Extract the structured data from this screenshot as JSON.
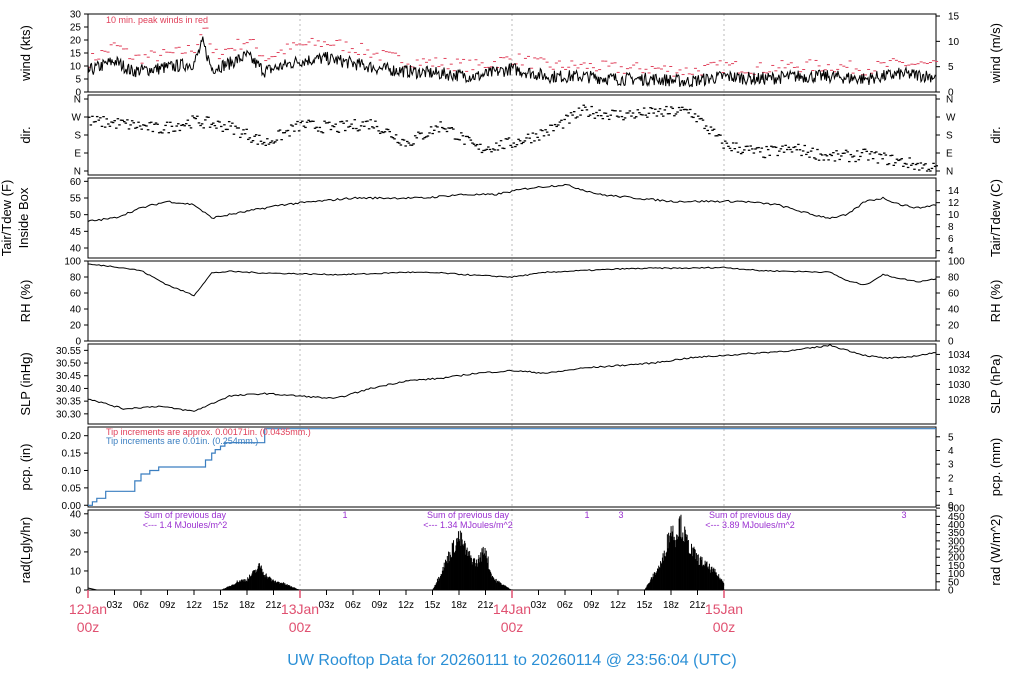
{
  "title": "UW Rooftop Data for 20260111  to  20260114 @ 23:56:04  (UTC)",
  "colors": {
    "data": "#000000",
    "peak": "#e0405a",
    "tip_red": "#e0405a",
    "tip_blue": "#3a7ec0",
    "sum_purple": "#9a2fd0",
    "day_label": "#e05070",
    "title": "#2a8fd6"
  },
  "time_axis": {
    "hour_labels": [
      "03z",
      "06z",
      "09z",
      "12z",
      "15z",
      "18z",
      "21z"
    ],
    "days": [
      {
        "date": "12Jan",
        "hour": "00z"
      },
      {
        "date": "13Jan",
        "hour": "00z"
      },
      {
        "date": "14Jan",
        "hour": "00z"
      },
      {
        "date": "15Jan",
        "hour": "00z"
      }
    ]
  },
  "chart_data": [
    {
      "type": "line",
      "id": "wind",
      "ylabel_left": "wind (kts)",
      "ylabel_right": "wind (m/s)",
      "yticks_left": [
        "0",
        "5",
        "10",
        "15",
        "20",
        "25",
        "30"
      ],
      "yticks_right": [
        "0",
        "5",
        "10",
        "15"
      ],
      "ylim_left": [
        0,
        30
      ],
      "ylim_right": [
        0,
        15.4
      ],
      "annotation": "10 min. peak winds in red",
      "series": [
        {
          "name": "wind",
          "x_hours": [
            0,
            3,
            5,
            8,
            10,
            12,
            13,
            14,
            16,
            18,
            20,
            22,
            24,
            27,
            30,
            33,
            36,
            40,
            44,
            48,
            52,
            56,
            60,
            64,
            68,
            72,
            76,
            80,
            84,
            88,
            92,
            96
          ],
          "values": [
            8,
            12,
            8,
            9,
            10,
            11,
            19,
            9,
            11,
            14,
            8,
            10,
            12,
            13,
            11,
            9,
            8,
            7,
            6,
            9,
            6,
            6,
            5,
            5,
            4,
            6,
            5,
            6,
            6,
            5,
            7,
            6
          ]
        },
        {
          "name": "10 min. peak winds",
          "x_hours": [
            0,
            3,
            5,
            8,
            10,
            12,
            13,
            14,
            16,
            18,
            20,
            22,
            24,
            27,
            30,
            33,
            36,
            40,
            44,
            48,
            52,
            56,
            60,
            64,
            68,
            72,
            76,
            80,
            84,
            88,
            92,
            96
          ],
          "values": [
            12,
            18,
            13,
            14,
            15,
            17,
            26,
            14,
            17,
            20,
            13,
            16,
            18,
            19,
            17,
            14,
            12,
            11,
            10,
            13,
            10,
            10,
            9,
            9,
            8,
            10,
            9,
            10,
            10,
            9,
            11,
            10
          ]
        }
      ]
    },
    {
      "type": "scatter",
      "id": "dir",
      "ylabel_left": "dir.",
      "ylabel_right": "dir.",
      "yticks": [
        "N",
        "E",
        "S",
        "W",
        "N"
      ],
      "x_hours": [
        0,
        4,
        8,
        12,
        16,
        20,
        24,
        28,
        32,
        36,
        40,
        44,
        48,
        52,
        56,
        60,
        64,
        68,
        72,
        76,
        80,
        84,
        88,
        92,
        96
      ],
      "values_deg": [
        250,
        235,
        210,
        250,
        220,
        140,
        230,
        215,
        240,
        140,
        230,
        110,
        140,
        200,
        300,
        280,
        290,
        300,
        130,
        90,
        110,
        70,
        80,
        45,
        10
      ]
    },
    {
      "type": "line",
      "id": "temp",
      "ylabel_left": "Inside Box",
      "ylabel_left2": "Tair/Tdew (F)",
      "ylabel_right": "Tair/Tdew (C)",
      "yticks_left": [
        "40",
        "45",
        "50",
        "55",
        "60"
      ],
      "yticks_right": [
        "4",
        "6",
        "8",
        "10",
        "12",
        "14"
      ],
      "ylim_left": [
        37,
        61
      ],
      "x_hours": [
        0,
        3,
        6,
        9,
        12,
        14,
        18,
        22,
        26,
        30,
        34,
        38,
        42,
        46,
        50,
        54,
        58,
        62,
        66,
        70,
        74,
        78,
        82,
        84,
        86,
        88,
        90,
        92,
        94,
        96
      ],
      "values": [
        48,
        49,
        52,
        54,
        53,
        49,
        51,
        53,
        54,
        55,
        55,
        55,
        56,
        56,
        58,
        59,
        56,
        55,
        54,
        54,
        54,
        53,
        50,
        49,
        50,
        54,
        55,
        53,
        52,
        53
      ]
    },
    {
      "type": "line",
      "id": "rh",
      "ylabel_left": "RH (%)",
      "ylabel_right": "RH (%)",
      "yticks": [
        "0",
        "20",
        "40",
        "60",
        "80",
        "100"
      ],
      "ylim": [
        0,
        100
      ],
      "x_hours": [
        0,
        3,
        6,
        9,
        12,
        14,
        16,
        20,
        24,
        28,
        32,
        36,
        40,
        44,
        48,
        52,
        56,
        60,
        64,
        68,
        72,
        76,
        80,
        84,
        86,
        88,
        90,
        92,
        94,
        96
      ],
      "values": [
        96,
        93,
        88,
        70,
        57,
        85,
        87,
        85,
        84,
        83,
        84,
        86,
        85,
        82,
        80,
        86,
        88,
        90,
        91,
        91,
        92,
        88,
        87,
        86,
        75,
        70,
        83,
        78,
        74,
        78
      ]
    },
    {
      "type": "line",
      "id": "slp",
      "ylabel_left": "SLP (inHg)",
      "ylabel_right": "SLP (hPa)",
      "yticks_left": [
        "30.30",
        "30.35",
        "30.40",
        "30.45",
        "30.50",
        "30.55"
      ],
      "yticks_right": [
        "1028",
        "1030",
        "1032",
        "1034"
      ],
      "ylim_left": [
        30.26,
        30.575
      ],
      "x_hours": [
        0,
        4,
        8,
        12,
        16,
        20,
        24,
        28,
        32,
        36,
        40,
        44,
        48,
        52,
        56,
        60,
        64,
        68,
        72,
        76,
        80,
        84,
        88,
        90,
        92,
        94,
        96
      ],
      "values": [
        30.36,
        30.32,
        30.33,
        30.31,
        30.37,
        30.38,
        30.37,
        30.36,
        30.4,
        30.43,
        30.44,
        30.46,
        30.47,
        30.46,
        30.48,
        30.49,
        30.5,
        30.52,
        30.53,
        30.54,
        30.55,
        30.57,
        30.53,
        30.52,
        30.52,
        30.53,
        30.54
      ]
    },
    {
      "type": "line",
      "id": "pcp",
      "ylabel_left": "pcp. (in)",
      "ylabel_right": "pcp. (mm)",
      "yticks_left": [
        "0.00",
        "0.05",
        "0.10",
        "0.15",
        "0.20"
      ],
      "yticks_right": [
        "0",
        "1",
        "2",
        "3",
        "4",
        "5"
      ],
      "ylim_left": [
        -0.005,
        0.225
      ],
      "annotation_red": "Tip increments are approx. 0.00171in. (0.0435mm.)",
      "annotation_blue": "Tip increments are 0.01in. (0.254mm.)",
      "x_hours": [
        0,
        0.5,
        1,
        2,
        5,
        5.3,
        6,
        7,
        8,
        13,
        13.3,
        14,
        14.4,
        15,
        15.5,
        16,
        19.5,
        20,
        96
      ],
      "values": [
        0.0,
        0.01,
        0.02,
        0.04,
        0.04,
        0.07,
        0.09,
        0.1,
        0.11,
        0.11,
        0.13,
        0.15,
        0.16,
        0.17,
        0.18,
        0.18,
        0.18,
        0.22,
        0.22
      ]
    },
    {
      "type": "area",
      "id": "rad",
      "ylabel_left": "rad(Lgly/hr)",
      "ylabel_right": "rad (W/m^2)",
      "yticks_left": [
        "0",
        "10",
        "20",
        "30",
        "40"
      ],
      "yticks_right": [
        "0",
        "50",
        "100",
        "150",
        "200",
        "250",
        "300",
        "350",
        "400",
        "450",
        "500"
      ],
      "ylim_left": [
        0,
        42
      ],
      "days": [
        {
          "x_hours": [
            15,
            16,
            17,
            18,
            19,
            19.5,
            20,
            21,
            22,
            23,
            24
          ],
          "values": [
            0,
            2,
            5,
            6,
            11,
            14,
            9,
            5,
            4,
            2,
            0
          ]
        },
        {
          "x_hours": [
            39,
            40,
            41,
            42,
            42.5,
            43,
            44,
            45,
            45.5,
            46,
            47,
            48
          ],
          "values": [
            0,
            10,
            21,
            30,
            26,
            20,
            15,
            24,
            11,
            6,
            3,
            0
          ]
        },
        {
          "x_hours": [
            63,
            64,
            65,
            66,
            66.5,
            67,
            68,
            69,
            70,
            71,
            72
          ],
          "values": [
            0,
            8,
            16,
            35,
            30,
            38,
            25,
            18,
            14,
            10,
            4
          ]
        }
      ],
      "sum_labels": [
        {
          "line1": "Sum of previous day",
          "line2": "<--- 1.4 MJoules/m^2"
        },
        {
          "line1": "Sum of previous day",
          "line2": "<--- 1.34 MJoules/m^2"
        },
        {
          "line1": "Sum of previous day",
          "line2": "<--- 3.89 MJoules/m^2"
        }
      ],
      "markers": [
        "1",
        "1",
        "3",
        "3"
      ]
    }
  ]
}
